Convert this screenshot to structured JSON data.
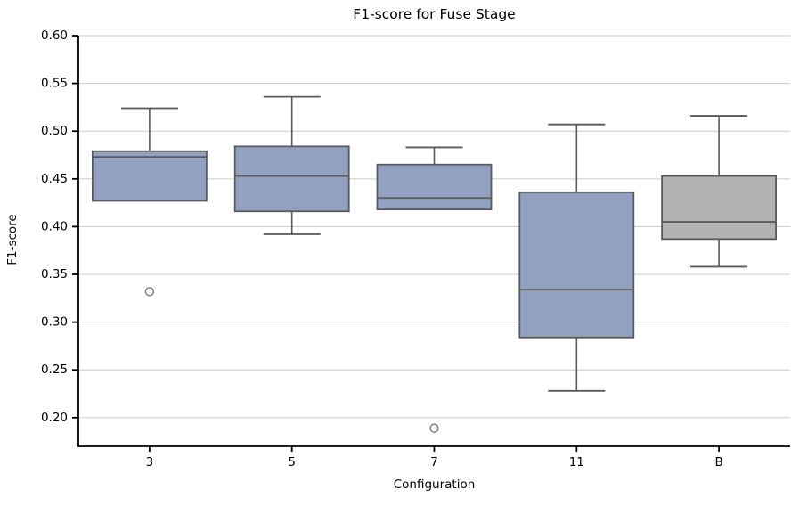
{
  "chart_data": {
    "type": "boxplot",
    "title": "F1-score for Fuse Stage",
    "xlabel": "Configuration",
    "ylabel": "F1-score",
    "categories": [
      "3",
      "5",
      "7",
      "11",
      "B"
    ],
    "ylim": [
      0.17,
      0.6
    ],
    "yticks": [
      0.6,
      0.55,
      0.5,
      0.45,
      0.4,
      0.35,
      0.3,
      0.25,
      0.2
    ],
    "ytick_labels": [
      "0.60",
      "0.55",
      "0.50",
      "0.45",
      "0.40",
      "0.35",
      "0.30",
      "0.25",
      "0.20"
    ],
    "grid": "horizontal",
    "legend": "none",
    "boxes": [
      {
        "category": "3",
        "whisker_low": 0.427,
        "q1": 0.427,
        "median": 0.473,
        "q3": 0.479,
        "whisker_high": 0.524,
        "outliers": [
          0.332
        ],
        "fill": "#92a1c1"
      },
      {
        "category": "5",
        "whisker_low": 0.392,
        "q1": 0.416,
        "median": 0.453,
        "q3": 0.484,
        "whisker_high": 0.536,
        "outliers": [],
        "fill": "#92a1c1"
      },
      {
        "category": "7",
        "whisker_low": 0.418,
        "q1": 0.418,
        "median": 0.43,
        "q3": 0.465,
        "whisker_high": 0.483,
        "outliers": [
          0.189
        ],
        "fill": "#92a1c1"
      },
      {
        "category": "11",
        "whisker_low": 0.228,
        "q1": 0.284,
        "median": 0.334,
        "q3": 0.436,
        "whisker_high": 0.507,
        "outliers": [],
        "fill": "#92a1c1"
      },
      {
        "category": "B",
        "whisker_low": 0.358,
        "q1": 0.387,
        "median": 0.405,
        "q3": 0.453,
        "whisker_high": 0.516,
        "outliers": [],
        "fill": "#b3b3b3"
      }
    ],
    "colors": {
      "box_blue": "#92a1c1",
      "box_gray": "#b3b3b3",
      "edge": "#5a5a5a",
      "whisker": "#5a5a5a",
      "outlier_edge": "#7a7a7a",
      "gridline": "#cccccc",
      "spine": "#000000",
      "text": "#000000"
    }
  }
}
